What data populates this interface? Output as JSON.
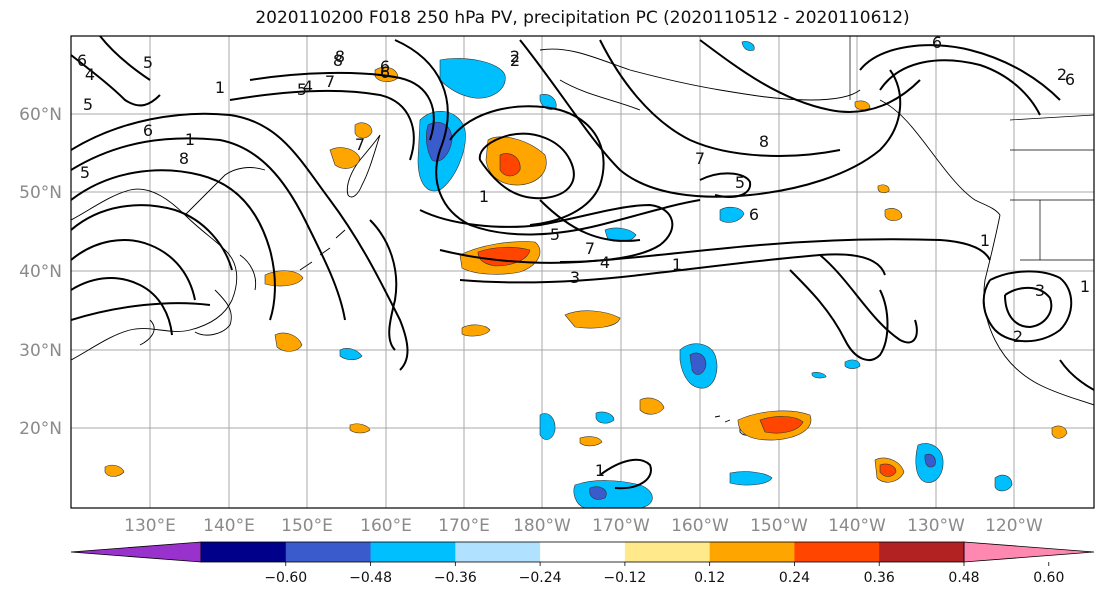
{
  "title": "2020110200 F018 250 hPa PV, precipitation PC (2020110512 - 2020110612)",
  "lat_labels": [
    "60°N",
    "50°N",
    "40°N",
    "30°N",
    "20°N"
  ],
  "lon_labels": [
    "130°E",
    "140°E",
    "150°E",
    "160°E",
    "170°E",
    "180°W",
    "170°W",
    "160°W",
    "150°W",
    "140°W",
    "130°W",
    "120°W"
  ],
  "colorbar": {
    "tick_labels": [
      "−0.60",
      "−0.48",
      "−0.36",
      "−0.24",
      "−0.12",
      "0.12",
      "0.24",
      "0.36",
      "0.48",
      "0.60"
    ],
    "colors": [
      "#9932cc",
      "#00008b",
      "#3a5bcc",
      "#00bfff",
      "#b0e2ff",
      "#ffffff",
      "#ffe98a",
      "#ffa500",
      "#ff4500",
      "#b22222",
      "#ff88b0"
    ]
  },
  "contour_labels": [
    "6",
    "4",
    "5",
    "8",
    "6",
    "2",
    "1",
    "6",
    "8",
    "2",
    "5",
    "7",
    "4",
    "5",
    "6",
    "1",
    "8",
    "1",
    "5",
    "7",
    "6",
    "1",
    "5",
    "6",
    "7",
    "4",
    "3",
    "1",
    "7",
    "8",
    "6",
    "5",
    "1",
    "1",
    "3",
    "2",
    "1",
    "2"
  ]
}
